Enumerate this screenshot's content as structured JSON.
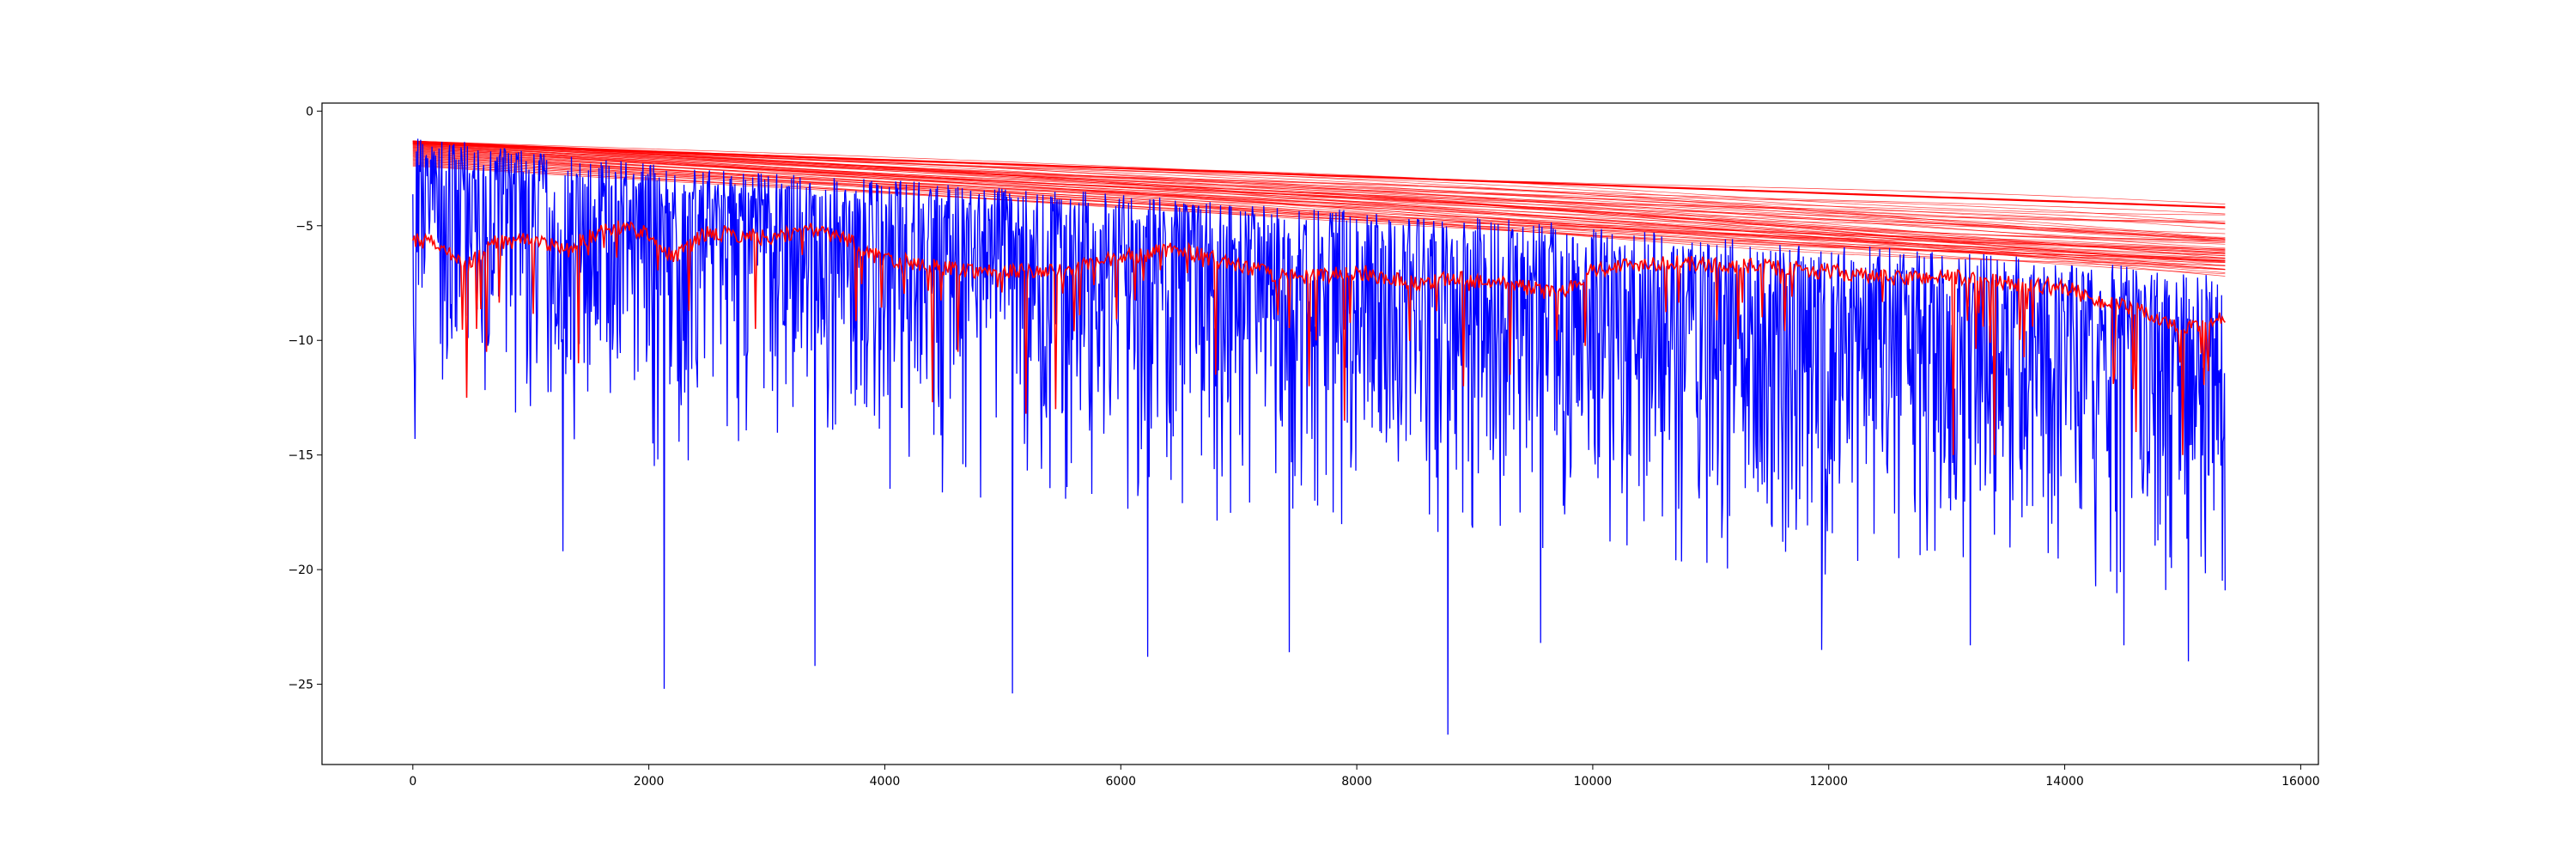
{
  "chart_data": {
    "type": "line",
    "title": "",
    "xlabel": "",
    "ylabel": "",
    "xlim": [
      -770,
      16150
    ],
    "ylim": [
      -28.5,
      0.35
    ],
    "grid": false,
    "legend": "none",
    "x_ticks": [
      {
        "value": 0,
        "label": "0"
      },
      {
        "value": 2000,
        "label": "2000"
      },
      {
        "value": 4000,
        "label": "4000"
      },
      {
        "value": 6000,
        "label": "6000"
      },
      {
        "value": 8000,
        "label": "8000"
      },
      {
        "value": 10000,
        "label": "10000"
      },
      {
        "value": 12000,
        "label": "12000"
      },
      {
        "value": 14000,
        "label": "14000"
      },
      {
        "value": 16000,
        "label": "16000"
      }
    ],
    "y_ticks": [
      {
        "value": 0,
        "label": "0"
      },
      {
        "value": -5,
        "label": "−5"
      },
      {
        "value": -10,
        "label": "−10"
      },
      {
        "value": -15,
        "label": "−15"
      },
      {
        "value": -20,
        "label": "−20"
      },
      {
        "value": -25,
        "label": "−25"
      }
    ],
    "series": [
      {
        "role": "noisy-envelope",
        "color": "#0000ff",
        "x_range": [
          0,
          15360
        ],
        "upper": {
          "x": [
            0,
            200,
            1000,
            2000,
            3000,
            4000,
            5000,
            6000,
            7000,
            8000,
            9000,
            10000,
            11000,
            12000,
            13000,
            14000,
            15000,
            15360
          ],
          "y": [
            -1.2,
            -1.0,
            -1.8,
            -2.3,
            -2.7,
            -3.0,
            -3.3,
            -3.6,
            -4.0,
            -4.3,
            -4.6,
            -5.0,
            -5.4,
            -5.8,
            -6.1,
            -6.5,
            -7.0,
            -7.2
          ]
        },
        "center": {
          "x": [
            0,
            1000,
            2000,
            3000,
            4000,
            5000,
            6000,
            7000,
            8000,
            9000,
            10000,
            11000,
            12000,
            13000,
            14000,
            15000,
            15360
          ],
          "y": [
            -4.5,
            -5.0,
            -5.5,
            -6.0,
            -6.4,
            -6.8,
            -7.2,
            -7.6,
            -8.0,
            -8.5,
            -9.0,
            -9.4,
            -9.8,
            -10.2,
            -10.6,
            -11.0,
            -11.2
          ]
        },
        "lower": {
          "x": [
            0,
            1000,
            2000,
            3000,
            4000,
            5000,
            6000,
            7000,
            8000,
            9000,
            10000,
            11000,
            12000,
            13000,
            14000,
            15000,
            15360
          ],
          "y": [
            -10.0,
            -11.0,
            -12.0,
            -12.5,
            -13.0,
            -13.5,
            -14.0,
            -14.5,
            -15.0,
            -15.5,
            -16.0,
            -16.5,
            -17.0,
            -17.0,
            -17.5,
            -18.0,
            -18.5
          ]
        },
        "spikes": [
          {
            "x": 20,
            "y": -14.3
          },
          {
            "x": 1270,
            "y": -19.2
          },
          {
            "x": 2130,
            "y": -25.2
          },
          {
            "x": 3410,
            "y": -24.2
          },
          {
            "x": 5080,
            "y": -25.4
          },
          {
            "x": 6230,
            "y": -23.8
          },
          {
            "x": 7430,
            "y": -23.6
          },
          {
            "x": 8770,
            "y": -27.2
          },
          {
            "x": 9560,
            "y": -23.2
          },
          {
            "x": 11940,
            "y": -23.5
          },
          {
            "x": 13200,
            "y": -23.3
          },
          {
            "x": 14500,
            "y": -23.3
          },
          {
            "x": 15050,
            "y": -24.0
          },
          {
            "x": 15360,
            "y": -20.9
          }
        ]
      },
      {
        "role": "smooth-lines",
        "color": "#ff0000",
        "count": 60,
        "x_range": [
          0,
          15360
        ],
        "start_y_range": [
          -1.3,
          -2.4
        ],
        "end_y_range": [
          -4.1,
          -7.0
        ],
        "heavy_line": {
          "start": -1.4,
          "end": -4.2
        }
      },
      {
        "role": "noisy-red-line",
        "color": "#ff0000",
        "points": [
          [
            0,
            -5.6
          ],
          [
            250,
            -5.8
          ],
          [
            450,
            -6.8
          ],
          [
            700,
            -5.7
          ],
          [
            1000,
            -5.6
          ],
          [
            1300,
            -6.0
          ],
          [
            1700,
            -5.0
          ],
          [
            2000,
            -5.3
          ],
          [
            2200,
            -6.4
          ],
          [
            2500,
            -5.3
          ],
          [
            3000,
            -5.5
          ],
          [
            3400,
            -5.2
          ],
          [
            3700,
            -5.6
          ],
          [
            3900,
            -6.3
          ],
          [
            4200,
            -6.6
          ],
          [
            4600,
            -6.9
          ],
          [
            5000,
            -7.0
          ],
          [
            5500,
            -7.0
          ],
          [
            6000,
            -6.4
          ],
          [
            6500,
            -6.0
          ],
          [
            7000,
            -6.8
          ],
          [
            7500,
            -7.3
          ],
          [
            8000,
            -7.0
          ],
          [
            8500,
            -7.5
          ],
          [
            8800,
            -7.3
          ],
          [
            9300,
            -7.5
          ],
          [
            9700,
            -8.0
          ],
          [
            10000,
            -6.9
          ],
          [
            10500,
            -6.6
          ],
          [
            11000,
            -6.7
          ],
          [
            11500,
            -6.8
          ],
          [
            12000,
            -7.0
          ],
          [
            12500,
            -7.3
          ],
          [
            13000,
            -7.2
          ],
          [
            13500,
            -7.5
          ],
          [
            14000,
            -7.7
          ],
          [
            14300,
            -8.3
          ],
          [
            14700,
            -8.8
          ],
          [
            15000,
            -9.6
          ],
          [
            15360,
            -9.0
          ]
        ],
        "dips": [
          {
            "x": 450,
            "y": -12.5
          },
          {
            "x": 620,
            "y": -10.5
          },
          {
            "x": 1400,
            "y": -11.0
          },
          {
            "x": 2900,
            "y": -9.5
          },
          {
            "x": 4400,
            "y": -12.7
          },
          {
            "x": 4620,
            "y": -10.5
          },
          {
            "x": 5200,
            "y": -13.2
          },
          {
            "x": 5450,
            "y": -13.0
          },
          {
            "x": 6800,
            "y": -11.5
          },
          {
            "x": 7600,
            "y": -12.0
          },
          {
            "x": 7900,
            "y": -13.5
          },
          {
            "x": 8900,
            "y": -12.0
          },
          {
            "x": 9300,
            "y": -11.5
          },
          {
            "x": 13050,
            "y": -15.0
          },
          {
            "x": 13400,
            "y": -15.0
          },
          {
            "x": 14600,
            "y": -14.0
          },
          {
            "x": 15000,
            "y": -15.0
          }
        ]
      }
    ]
  }
}
